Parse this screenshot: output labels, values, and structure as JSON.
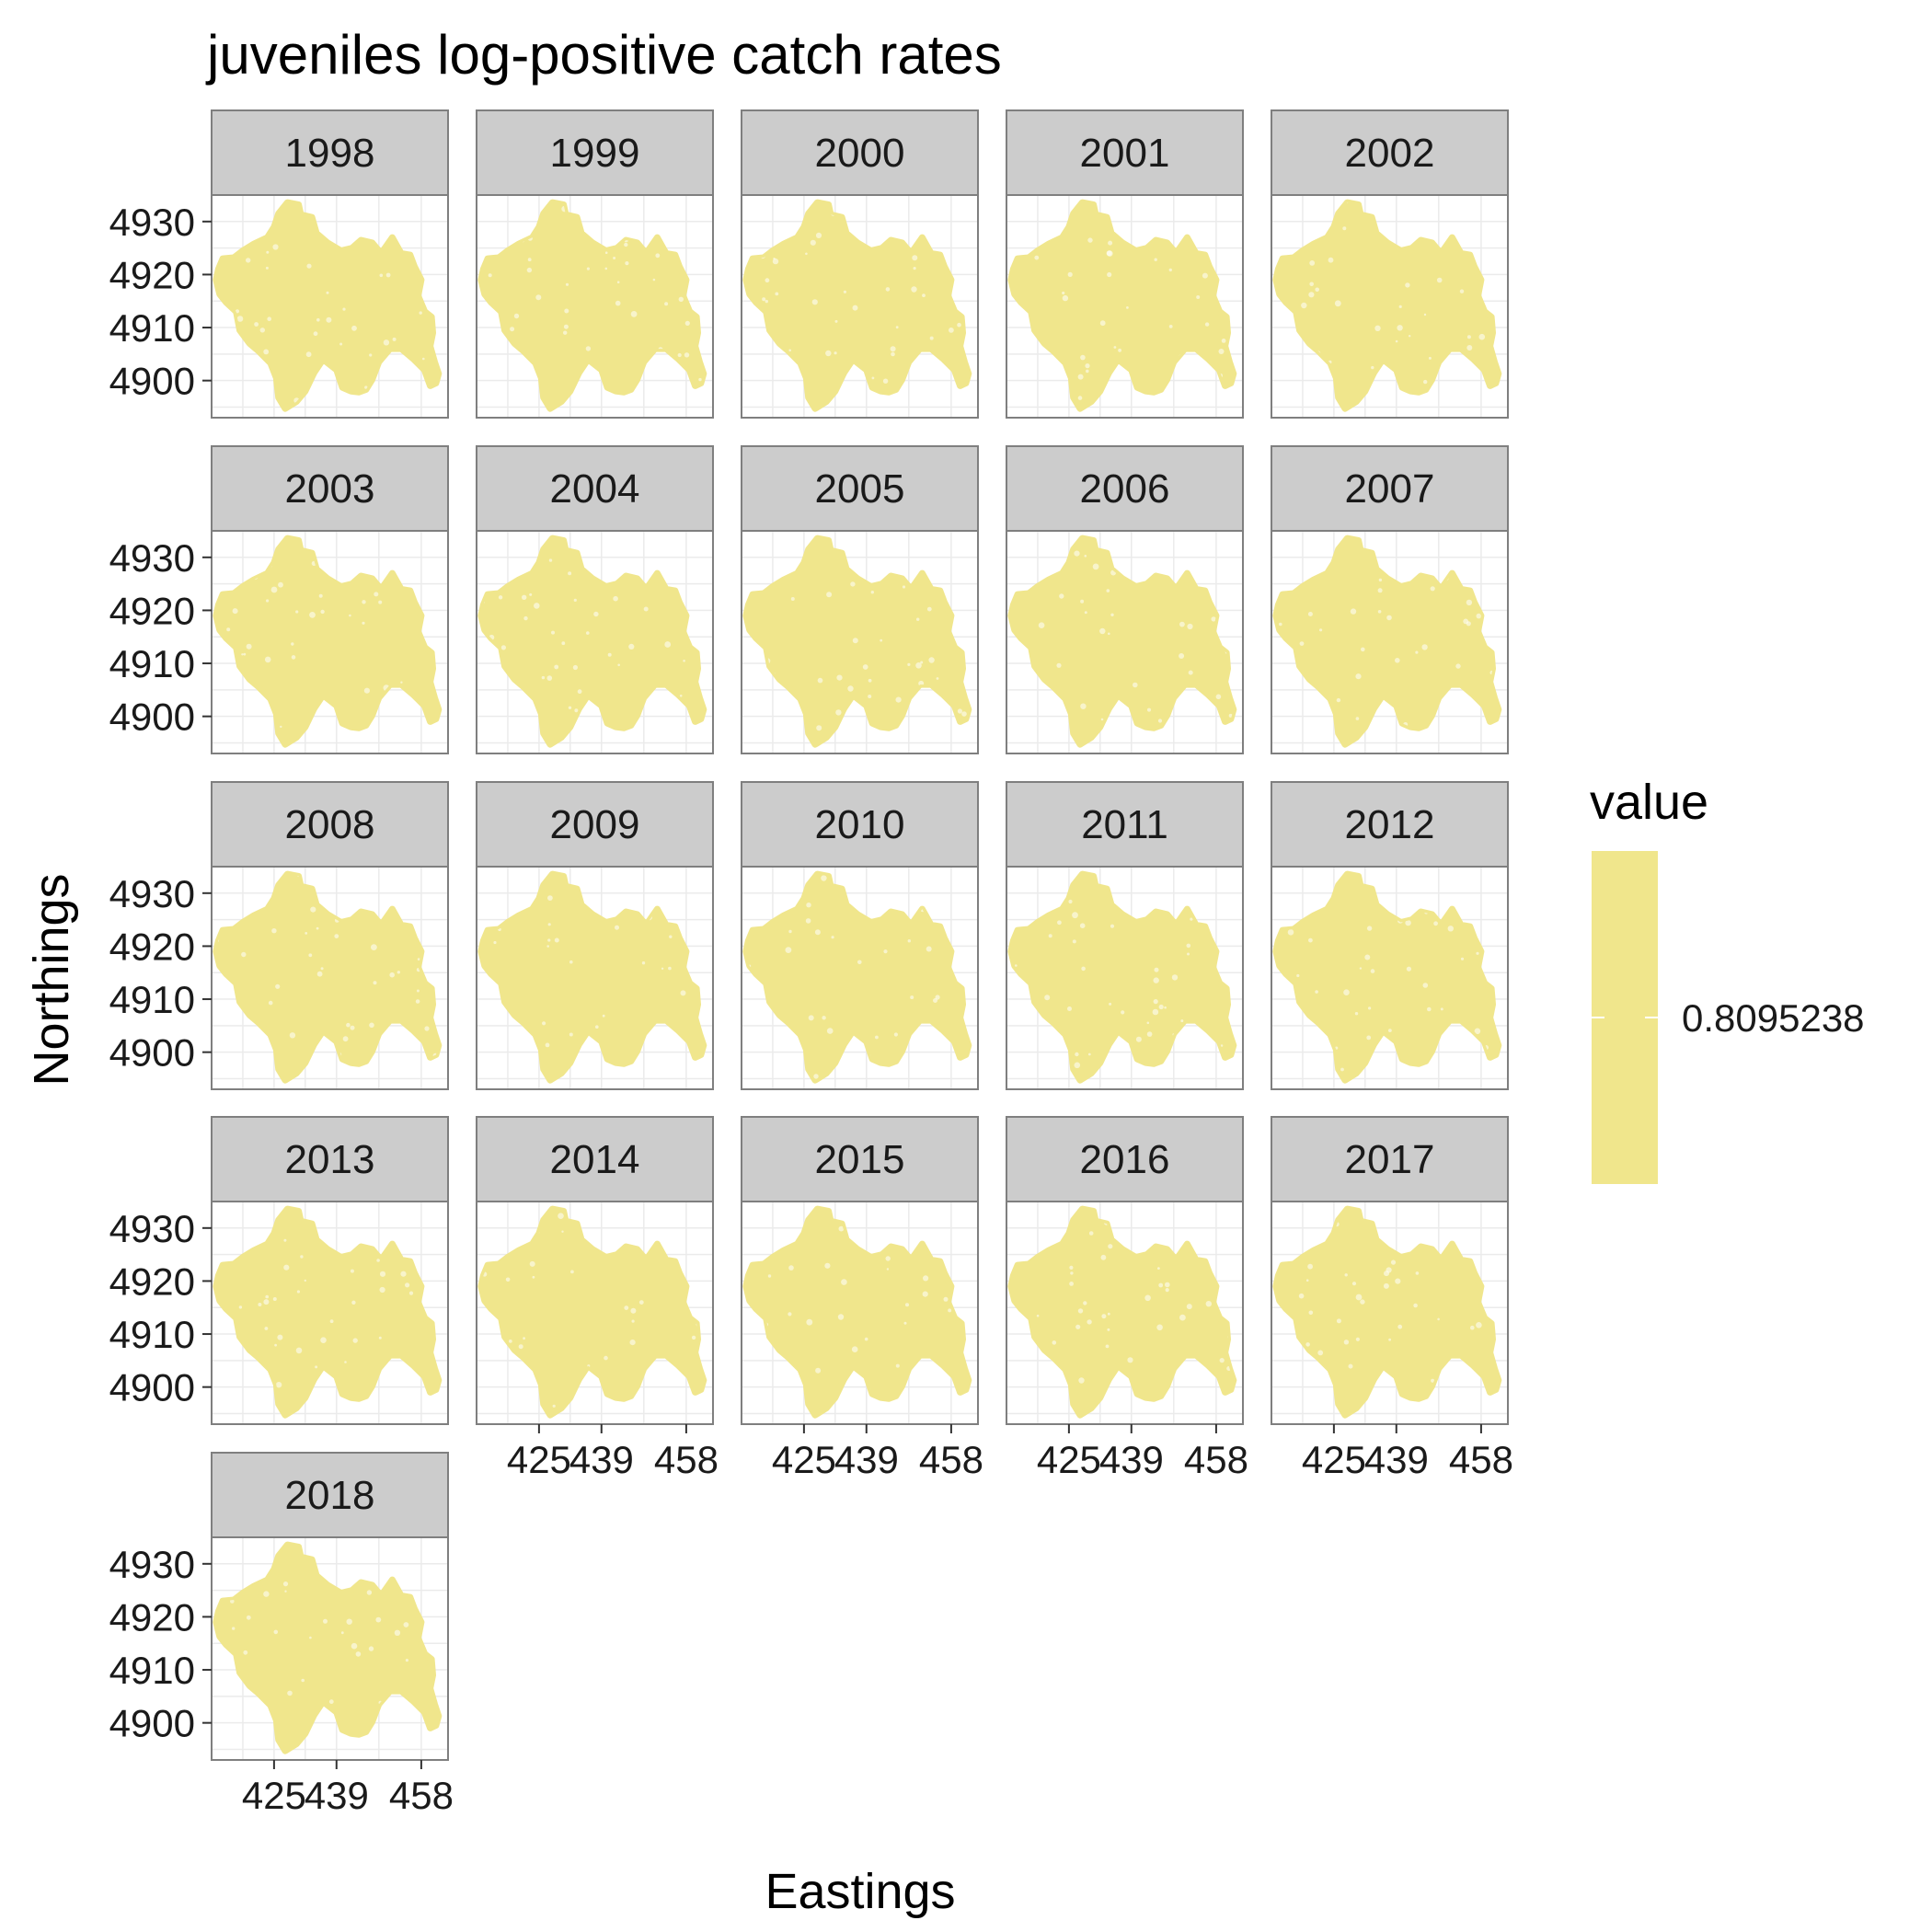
{
  "chart_data": {
    "type": "scatter",
    "title": "juveniles log-positive catch rates",
    "xlabel": "Eastings",
    "ylabel": "Northings",
    "xlim": [
      411,
      464
    ],
    "ylim": [
      4893,
      4935
    ],
    "x_ticks": [
      425,
      439,
      458
    ],
    "y_ticks": [
      4900,
      4910,
      4920,
      4930
    ],
    "grid": true,
    "facets": [
      "1998",
      "1999",
      "2000",
      "2001",
      "2002",
      "2003",
      "2004",
      "2005",
      "2006",
      "2007",
      "2008",
      "2009",
      "2010",
      "2011",
      "2012",
      "2013",
      "2014",
      "2015",
      "2016",
      "2017",
      "2018"
    ],
    "facet_columns": 5,
    "point_color": "#F0E68C",
    "value": 0.8095238,
    "legend": {
      "title": "value",
      "label": "0.8095238",
      "position": "right",
      "color": "#F0E68C"
    }
  }
}
